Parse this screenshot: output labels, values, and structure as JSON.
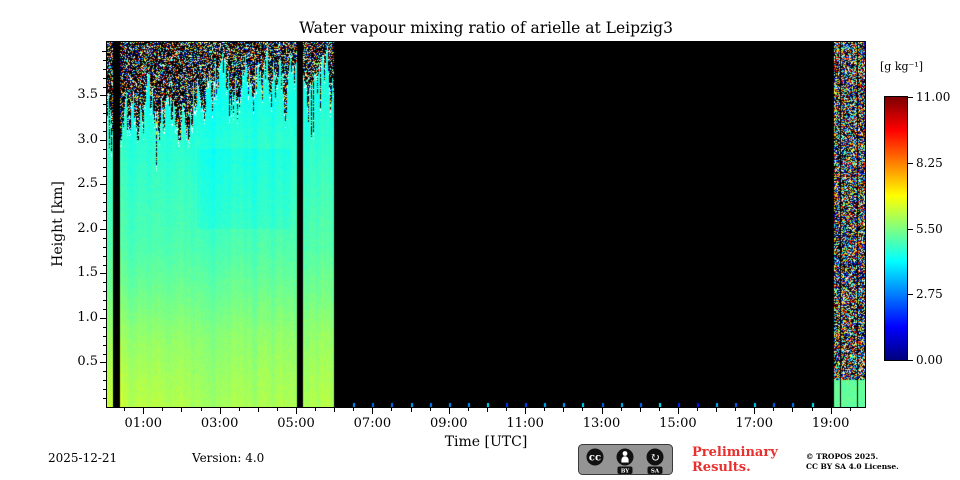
{
  "title": "Water vapour mixing ratio of arielle at Leipzig3",
  "chart_data": {
    "type": "heatmap",
    "title": "Water vapour mixing ratio of arielle at Leipzig3",
    "xlabel": "Time [UTC]",
    "ylabel": "Height [km]",
    "xlim_hours": [
      0.05,
      19.9
    ],
    "ylim_km": [
      0,
      4.1
    ],
    "x_ticks_hours": [
      1,
      3,
      5,
      7,
      9,
      11,
      13,
      15,
      17,
      19
    ],
    "x_tick_labels": [
      "01:00",
      "03:00",
      "05:00",
      "07:00",
      "09:00",
      "11:00",
      "13:00",
      "15:00",
      "17:00",
      "19:00"
    ],
    "x_minor_interval_hours": 0.5,
    "y_ticks_km": [
      0.5,
      1.0,
      1.5,
      2.0,
      2.5,
      3.0,
      3.5
    ],
    "y_minor_interval_km": 0.1,
    "colorbar": {
      "label": "[g kg⁻¹]",
      "vmin": 0,
      "vmax": 11,
      "ticks": [
        0.0,
        2.75,
        5.5,
        8.25,
        11.0
      ],
      "colormap": "jet"
    },
    "segments": [
      {
        "name": "morning-data",
        "t_start": 0.05,
        "t_end": 6.0,
        "kind": "data"
      },
      {
        "name": "no-data-gap",
        "t_start": 6.0,
        "t_end": 19.1,
        "kind": "no-data"
      },
      {
        "name": "evening-noisy",
        "t_start": 19.1,
        "t_end": 19.9,
        "kind": "noisy-data"
      }
    ],
    "black_stripes_hours": [
      [
        0.22,
        0.38
      ],
      [
        5.02,
        5.18
      ]
    ],
    "mean_profile": {
      "heights_km": [
        0,
        0.3,
        0.8,
        1.2,
        1.8,
        2.4,
        3.0,
        3.4
      ],
      "values_gkg": [
        6.0,
        5.9,
        5.7,
        5.4,
        5.0,
        4.8,
        4.6,
        4.4
      ]
    },
    "cloud_noise_region": {
      "base_km_min": 3.0,
      "base_km_max": 4.05
    },
    "evening_surface_value_gkg": 5.2
  },
  "footer": {
    "date": "2025-12-21",
    "version_label": "Version: 4.0",
    "preliminary_line1": "Preliminary",
    "preliminary_line2": "Results.",
    "copyright_line1": "© TROPOS 2025.",
    "copyright_line2": "CC BY SA 4.0 License.",
    "badge": {
      "cc": "cc",
      "by": "BY",
      "sa": "SA"
    }
  }
}
